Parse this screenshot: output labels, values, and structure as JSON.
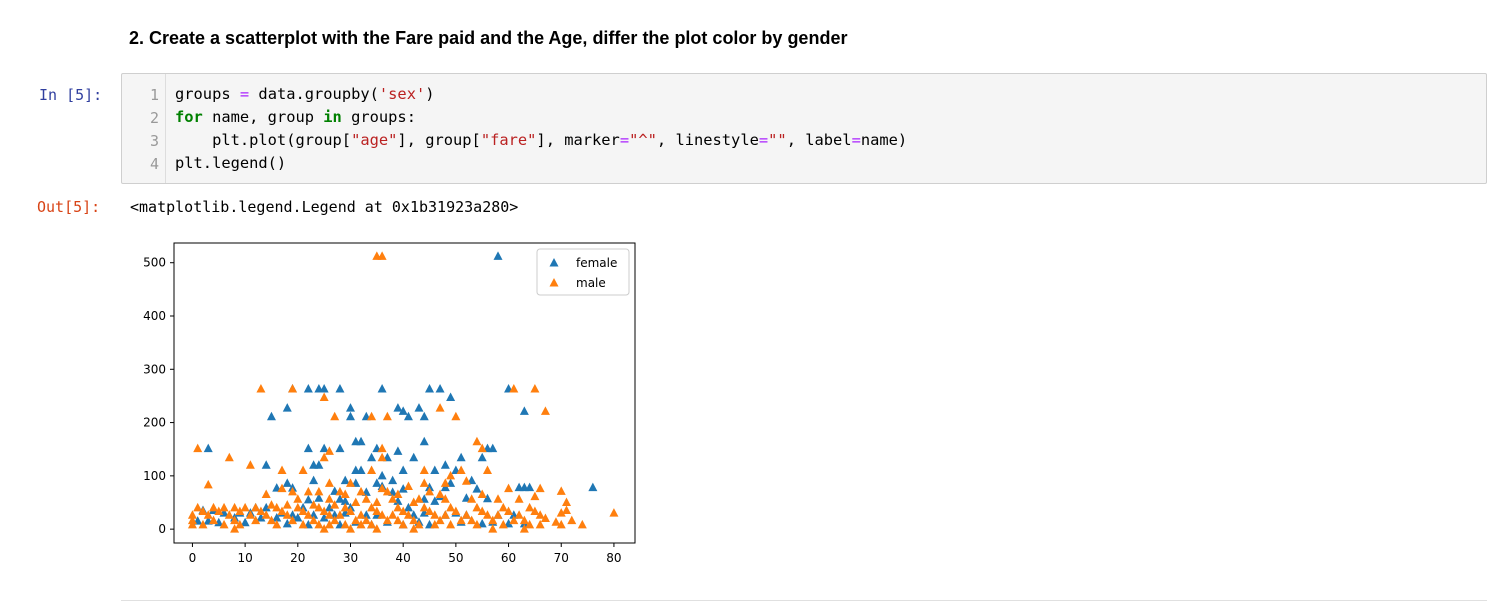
{
  "markdown": {
    "heading": "2. Create a scatterplot with the Fare paid and the Age, differ the plot color by gender"
  },
  "cell": {
    "in_prompt": "In [5]:",
    "out_prompt": "Out[5]:",
    "line_numbers": [
      "1",
      "2",
      "3",
      "4"
    ],
    "code": {
      "l1_a": "groups ",
      "l1_op": "=",
      "l1_b": " data.groupby(",
      "l1_str": "'sex'",
      "l1_c": ")",
      "l2_kw1": "for",
      "l2_a": " name, group ",
      "l2_kw2": "in",
      "l2_b": " groups:",
      "l3_a": "    plt.plot(group[",
      "l3_s1": "\"age\"",
      "l3_b": "], group[",
      "l3_s2": "\"fare\"",
      "l3_c": "], marker",
      "l3_op1": "=",
      "l3_s3": "\"^\"",
      "l3_d": ", linestyle",
      "l3_op2": "=",
      "l3_s4": "\"\"",
      "l3_e": ", label",
      "l3_op3": "=",
      "l3_f": "name)",
      "l4": "plt.legend()"
    },
    "output_text": "<matplotlib.legend.Legend at 0x1b31923a280>"
  },
  "colors": {
    "female": "#1f77b4",
    "male": "#ff7f0e",
    "in_prompt": "#303f9f",
    "out_prompt": "#d84315"
  },
  "chart_data": {
    "type": "scatter",
    "xlim": [
      -3.5,
      84
    ],
    "ylim": [
      -26,
      537
    ],
    "xticks": [
      "0",
      "10",
      "20",
      "30",
      "40",
      "50",
      "60",
      "70",
      "80"
    ],
    "yticks": [
      "0",
      "100",
      "200",
      "300",
      "400",
      "500"
    ],
    "legend_position": "top-right",
    "marker": "triangle-up",
    "grid": false,
    "series": [
      {
        "name": "female",
        "color": "#1f77b4",
        "points": [
          [
            58,
            512
          ],
          [
            19,
            263
          ],
          [
            22,
            263
          ],
          [
            24,
            263
          ],
          [
            25,
            263
          ],
          [
            28,
            263
          ],
          [
            36,
            263
          ],
          [
            45,
            263
          ],
          [
            47,
            263
          ],
          [
            49,
            247
          ],
          [
            60,
            263
          ],
          [
            18,
            227
          ],
          [
            30,
            227
          ],
          [
            39,
            227
          ],
          [
            43,
            227
          ],
          [
            30,
            211
          ],
          [
            41,
            211
          ],
          [
            33,
            211
          ],
          [
            15,
            211
          ],
          [
            63,
            221
          ],
          [
            40,
            221
          ],
          [
            44,
            211
          ],
          [
            32,
            164
          ],
          [
            31,
            164
          ],
          [
            44,
            164
          ],
          [
            3,
            151
          ],
          [
            22,
            151
          ],
          [
            25,
            151
          ],
          [
            28,
            151
          ],
          [
            35,
            151
          ],
          [
            56,
            151
          ],
          [
            57,
            151
          ],
          [
            39,
            146
          ],
          [
            34,
            134
          ],
          [
            37,
            134
          ],
          [
            42,
            134
          ],
          [
            51,
            134
          ],
          [
            55,
            134
          ],
          [
            48,
            120
          ],
          [
            14,
            120
          ],
          [
            23,
            120
          ],
          [
            24,
            120
          ],
          [
            31,
            110
          ],
          [
            32,
            110
          ],
          [
            40,
            110
          ],
          [
            50,
            110
          ],
          [
            46,
            110
          ],
          [
            36,
            100
          ],
          [
            23,
            91
          ],
          [
            29,
            91
          ],
          [
            38,
            91
          ],
          [
            53,
            91
          ],
          [
            18,
            86
          ],
          [
            31,
            86
          ],
          [
            35,
            86
          ],
          [
            49,
            86
          ],
          [
            76,
            78
          ],
          [
            62,
            78
          ],
          [
            63,
            78
          ],
          [
            64,
            78
          ],
          [
            45,
            78
          ],
          [
            48,
            78
          ],
          [
            16,
            77
          ],
          [
            19,
            77
          ],
          [
            54,
            75
          ],
          [
            36,
            80
          ],
          [
            40,
            75
          ],
          [
            27,
            71
          ],
          [
            33,
            69
          ],
          [
            38,
            69
          ],
          [
            47,
            61
          ],
          [
            52,
            58
          ],
          [
            56,
            57
          ],
          [
            24,
            58
          ],
          [
            28,
            56
          ],
          [
            22,
            55
          ],
          [
            44,
            56
          ],
          [
            29,
            52
          ],
          [
            39,
            52
          ],
          [
            46,
            52
          ],
          [
            12,
            40
          ],
          [
            14,
            40
          ],
          [
            21,
            40
          ],
          [
            26,
            40
          ],
          [
            30,
            40
          ],
          [
            41,
            40
          ],
          [
            2,
            35
          ],
          [
            4,
            35
          ],
          [
            6,
            30
          ],
          [
            9,
            30
          ],
          [
            11,
            30
          ],
          [
            17,
            30
          ],
          [
            19,
            26
          ],
          [
            23,
            26
          ],
          [
            27,
            26
          ],
          [
            33,
            26
          ],
          [
            35,
            26
          ],
          [
            42,
            26
          ],
          [
            48,
            26
          ],
          [
            52,
            26
          ],
          [
            58,
            26
          ],
          [
            61,
            26
          ],
          [
            1,
            15
          ],
          [
            3,
            15
          ],
          [
            8,
            21
          ],
          [
            13,
            21
          ],
          [
            16,
            21
          ],
          [
            20,
            21
          ],
          [
            25,
            21
          ],
          [
            31,
            13
          ],
          [
            37,
            13
          ],
          [
            43,
            13
          ],
          [
            51,
            13
          ],
          [
            57,
            13
          ],
          [
            63,
            10
          ],
          [
            34,
            8
          ],
          [
            22,
            8
          ],
          [
            28,
            8
          ],
          [
            40,
            8
          ],
          [
            45,
            8
          ],
          [
            18,
            10
          ],
          [
            10,
            12
          ],
          [
            5,
            12
          ],
          [
            55,
            10
          ],
          [
            60,
            10
          ],
          [
            50,
            30
          ],
          [
            44,
            30
          ],
          [
            29,
            30
          ]
        ]
      },
      {
        "name": "male",
        "color": "#ff7f0e",
        "points": [
          [
            35,
            512
          ],
          [
            36,
            512
          ],
          [
            13,
            263
          ],
          [
            19,
            263
          ],
          [
            65,
            263
          ],
          [
            61,
            263
          ],
          [
            25,
            247
          ],
          [
            27,
            211
          ],
          [
            34,
            211
          ],
          [
            37,
            211
          ],
          [
            50,
            211
          ],
          [
            47,
            227
          ],
          [
            67,
            221
          ],
          [
            1,
            151
          ],
          [
            36,
            151
          ],
          [
            54,
            164
          ],
          [
            55,
            151
          ],
          [
            26,
            146
          ],
          [
            36,
            134
          ],
          [
            7,
            134
          ],
          [
            25,
            134
          ],
          [
            11,
            120
          ],
          [
            17,
            110
          ],
          [
            21,
            110
          ],
          [
            34,
            110
          ],
          [
            44,
            110
          ],
          [
            51,
            110
          ],
          [
            49,
            100
          ],
          [
            56,
            110
          ],
          [
            52,
            90
          ],
          [
            3,
            83
          ],
          [
            17,
            76
          ],
          [
            26,
            86
          ],
          [
            30,
            86
          ],
          [
            44,
            86
          ],
          [
            48,
            86
          ],
          [
            60,
            76
          ],
          [
            66,
            76
          ],
          [
            41,
            80
          ],
          [
            36,
            76
          ],
          [
            70,
            71
          ],
          [
            19,
            70
          ],
          [
            22,
            70
          ],
          [
            24,
            70
          ],
          [
            28,
            70
          ],
          [
            32,
            70
          ],
          [
            37,
            70
          ],
          [
            45,
            70
          ],
          [
            14,
            65
          ],
          [
            29,
            65
          ],
          [
            39,
            65
          ],
          [
            47,
            65
          ],
          [
            55,
            65
          ],
          [
            65,
            61
          ],
          [
            71,
            50
          ],
          [
            71,
            35
          ],
          [
            80,
            30
          ],
          [
            20,
            56
          ],
          [
            26,
            56
          ],
          [
            33,
            56
          ],
          [
            38,
            56
          ],
          [
            43,
            56
          ],
          [
            48,
            56
          ],
          [
            53,
            56
          ],
          [
            58,
            56
          ],
          [
            62,
            56
          ],
          [
            31,
            50
          ],
          [
            35,
            50
          ],
          [
            42,
            50
          ],
          [
            15,
            45
          ],
          [
            18,
            45
          ],
          [
            23,
            45
          ],
          [
            27,
            45
          ],
          [
            1,
            40
          ],
          [
            4,
            40
          ],
          [
            6,
            40
          ],
          [
            8,
            40
          ],
          [
            10,
            40
          ],
          [
            12,
            40
          ],
          [
            16,
            40
          ],
          [
            20,
            40
          ],
          [
            24,
            40
          ],
          [
            29,
            40
          ],
          [
            34,
            40
          ],
          [
            39,
            40
          ],
          [
            44,
            40
          ],
          [
            49,
            40
          ],
          [
            54,
            40
          ],
          [
            59,
            40
          ],
          [
            64,
            40
          ],
          [
            2,
            33
          ],
          [
            5,
            33
          ],
          [
            9,
            33
          ],
          [
            13,
            33
          ],
          [
            17,
            33
          ],
          [
            21,
            33
          ],
          [
            25,
            33
          ],
          [
            30,
            33
          ],
          [
            35,
            33
          ],
          [
            40,
            33
          ],
          [
            45,
            33
          ],
          [
            50,
            33
          ],
          [
            55,
            33
          ],
          [
            60,
            33
          ],
          [
            65,
            33
          ],
          [
            70,
            30
          ],
          [
            0,
            26
          ],
          [
            3,
            26
          ],
          [
            7,
            26
          ],
          [
            11,
            26
          ],
          [
            14,
            26
          ],
          [
            18,
            26
          ],
          [
            22,
            26
          ],
          [
            26,
            26
          ],
          [
            28,
            26
          ],
          [
            32,
            26
          ],
          [
            36,
            26
          ],
          [
            38,
            26
          ],
          [
            41,
            26
          ],
          [
            46,
            26
          ],
          [
            48,
            26
          ],
          [
            52,
            26
          ],
          [
            56,
            26
          ],
          [
            58,
            26
          ],
          [
            62,
            26
          ],
          [
            66,
            26
          ],
          [
            0,
            16
          ],
          [
            4,
            16
          ],
          [
            8,
            16
          ],
          [
            12,
            16
          ],
          [
            15,
            16
          ],
          [
            19,
            16
          ],
          [
            23,
            16
          ],
          [
            27,
            16
          ],
          [
            31,
            16
          ],
          [
            33,
            16
          ],
          [
            37,
            16
          ],
          [
            39,
            16
          ],
          [
            42,
            16
          ],
          [
            47,
            16
          ],
          [
            51,
            16
          ],
          [
            53,
            16
          ],
          [
            57,
            16
          ],
          [
            61,
            16
          ],
          [
            63,
            16
          ],
          [
            0,
            8
          ],
          [
            2,
            8
          ],
          [
            6,
            8
          ],
          [
            9,
            8
          ],
          [
            16,
            8
          ],
          [
            21,
            8
          ],
          [
            24,
            8
          ],
          [
            26,
            8
          ],
          [
            29,
            8
          ],
          [
            32,
            8
          ],
          [
            34,
            8
          ],
          [
            40,
            8
          ],
          [
            43,
            8
          ],
          [
            46,
            8
          ],
          [
            49,
            8
          ],
          [
            54,
            8
          ],
          [
            59,
            8
          ],
          [
            64,
            8
          ],
          [
            66,
            8
          ],
          [
            70,
            8
          ],
          [
            74,
            8
          ],
          [
            67,
            20
          ],
          [
            69,
            13
          ],
          [
            72,
            16
          ],
          [
            8,
            0
          ],
          [
            25,
            0
          ],
          [
            30,
            0
          ],
          [
            42,
            0
          ],
          [
            57,
            0
          ],
          [
            63,
            0
          ],
          [
            35,
            0
          ]
        ]
      }
    ]
  }
}
